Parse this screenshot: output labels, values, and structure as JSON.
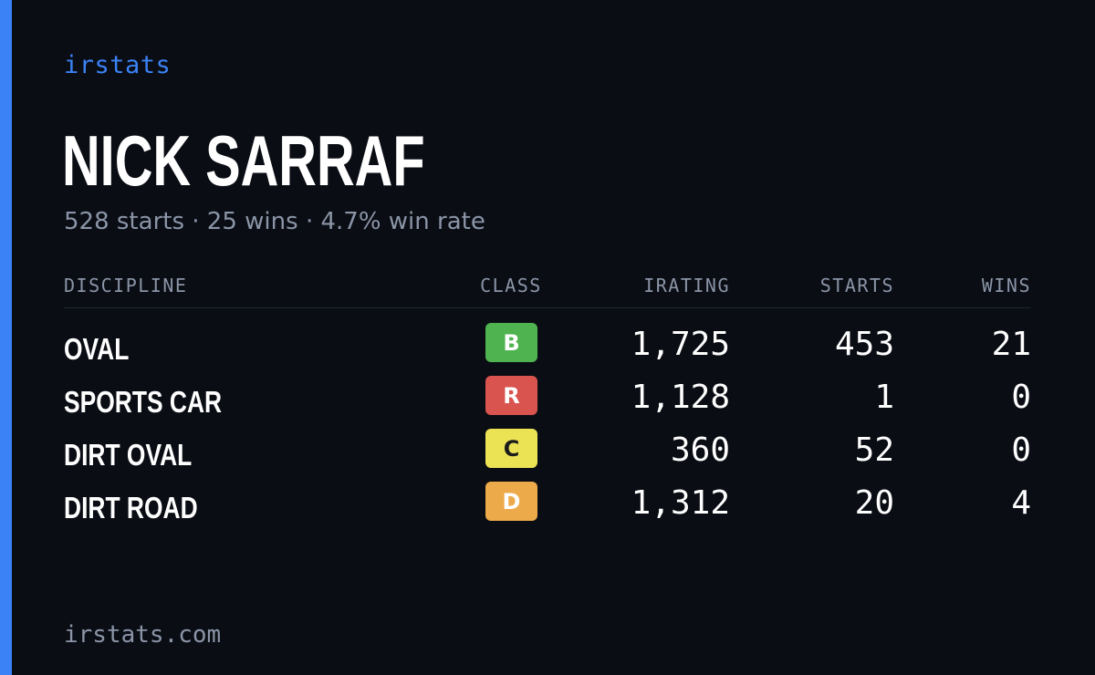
{
  "brand": "irstats",
  "driver": {
    "name": "NICK SARRAF",
    "summary": {
      "starts": "528 starts",
      "wins": "25 wins",
      "win_rate": "4.7% win rate",
      "separator": "·"
    }
  },
  "table": {
    "headers": {
      "discipline": "DISCIPLINE",
      "class": "CLASS",
      "irating": "IRATING",
      "starts": "STARTS",
      "wins": "WINS"
    },
    "rows": [
      {
        "discipline": "OVAL",
        "class": "B",
        "class_bg": "#4fb350",
        "class_fg": "#ffffff",
        "irating": "1,725",
        "starts": "453",
        "wins": "21"
      },
      {
        "discipline": "SPORTS CAR",
        "class": "R",
        "class_bg": "#d9534f",
        "class_fg": "#ffffff",
        "irating": "1,128",
        "starts": "1",
        "wins": "0"
      },
      {
        "discipline": "DIRT OVAL",
        "class": "C",
        "class_bg": "#ece354",
        "class_fg": "#1b1b1b",
        "irating": "360",
        "starts": "52",
        "wins": "0"
      },
      {
        "discipline": "DIRT ROAD",
        "class": "D",
        "class_bg": "#ecaa4a",
        "class_fg": "#ffffff",
        "irating": "1,312",
        "starts": "20",
        "wins": "4"
      }
    ]
  },
  "footer": "irstats.com",
  "colors": {
    "accent": "#3b82f6",
    "background": "#0a0d14",
    "muted": "#8b95a7"
  }
}
